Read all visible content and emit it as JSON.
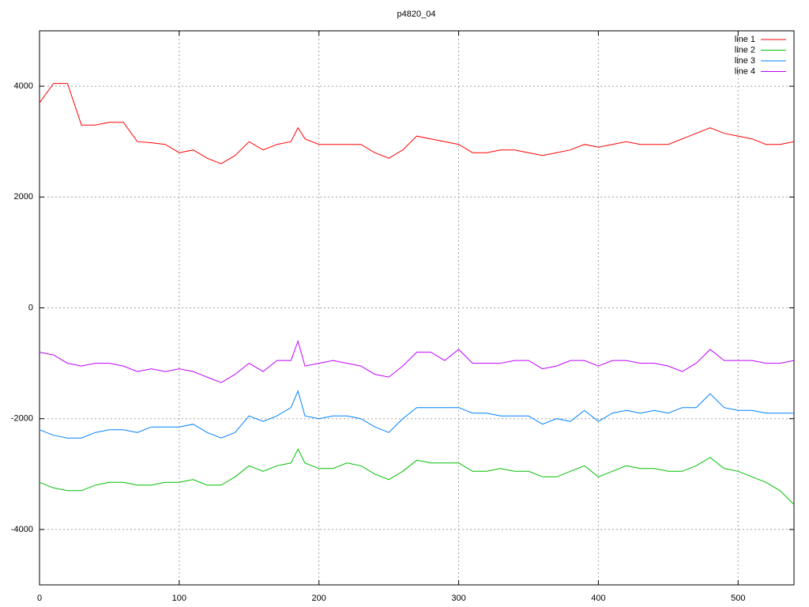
{
  "chart_data": {
    "type": "line",
    "title": "p4820_04",
    "x": [
      0,
      10,
      20,
      30,
      40,
      50,
      60,
      70,
      80,
      90,
      100,
      110,
      120,
      130,
      140,
      150,
      160,
      170,
      180,
      185,
      190,
      200,
      210,
      220,
      230,
      240,
      250,
      260,
      270,
      280,
      290,
      300,
      310,
      320,
      330,
      340,
      350,
      360,
      370,
      380,
      390,
      400,
      410,
      420,
      430,
      440,
      450,
      460,
      470,
      480,
      490,
      500,
      510,
      520,
      530,
      540
    ],
    "series": [
      {
        "name": "line 1",
        "color": "#ff0000",
        "values": [
          3700,
          4050,
          4050,
          3300,
          3300,
          3350,
          3350,
          3000,
          2980,
          2950,
          2800,
          2850,
          2700,
          2600,
          2750,
          3000,
          2850,
          2950,
          3000,
          3250,
          3050,
          2950,
          2950,
          2950,
          2950,
          2800,
          2700,
          2850,
          3100,
          3050,
          3000,
          2950,
          2800,
          2800,
          2850,
          2850,
          2800,
          2750,
          2800,
          2850,
          2950,
          2900,
          2950,
          3000,
          2950,
          2950,
          2950,
          3050,
          3150,
          3250,
          3150,
          3100,
          3050,
          2950,
          2950,
          3000
        ]
      },
      {
        "name": "line 2",
        "color": "#00c000",
        "values": [
          -3150,
          -3250,
          -3300,
          -3300,
          -3200,
          -3150,
          -3150,
          -3200,
          -3200,
          -3150,
          -3150,
          -3100,
          -3200,
          -3200,
          -3050,
          -2850,
          -2950,
          -2850,
          -2800,
          -2550,
          -2800,
          -2900,
          -2900,
          -2800,
          -2850,
          -3000,
          -3100,
          -2950,
          -2750,
          -2800,
          -2800,
          -2800,
          -2950,
          -2950,
          -2900,
          -2950,
          -2950,
          -3050,
          -3050,
          -2950,
          -2850,
          -3050,
          -2950,
          -2850,
          -2900,
          -2900,
          -2950,
          -2950,
          -2850,
          -2700,
          -2900,
          -2950,
          -3050,
          -3150,
          -3300,
          -3550
        ]
      },
      {
        "name": "line 3",
        "color": "#0080ff",
        "values": [
          -2200,
          -2300,
          -2350,
          -2350,
          -2250,
          -2200,
          -2200,
          -2250,
          -2150,
          -2150,
          -2150,
          -2100,
          -2250,
          -2350,
          -2250,
          -1950,
          -2050,
          -1950,
          -1800,
          -1500,
          -1950,
          -2000,
          -1950,
          -1950,
          -2000,
          -2150,
          -2250,
          -2000,
          -1800,
          -1800,
          -1800,
          -1800,
          -1900,
          -1900,
          -1950,
          -1950,
          -1950,
          -2100,
          -2000,
          -2050,
          -1850,
          -2050,
          -1900,
          -1850,
          -1900,
          -1850,
          -1900,
          -1800,
          -1800,
          -1550,
          -1800,
          -1850,
          -1850,
          -1900,
          -1900,
          -1900
        ]
      },
      {
        "name": "line 4",
        "color": "#c000ff",
        "values": [
          -800,
          -850,
          -1000,
          -1050,
          -1000,
          -1000,
          -1050,
          -1150,
          -1100,
          -1150,
          -1100,
          -1150,
          -1250,
          -1350,
          -1200,
          -1000,
          -1150,
          -950,
          -950,
          -600,
          -1050,
          -1000,
          -950,
          -1000,
          -1050,
          -1200,
          -1250,
          -1050,
          -800,
          -800,
          -950,
          -750,
          -1000,
          -1000,
          -1000,
          -950,
          -950,
          -1100,
          -1050,
          -950,
          -950,
          -1050,
          -950,
          -950,
          -1000,
          -1000,
          -1050,
          -1150,
          -1000,
          -750,
          -950,
          -950,
          -950,
          -1000,
          -1000,
          -950
        ]
      }
    ],
    "xlim": [
      0,
      540
    ],
    "ylim": [
      -5000,
      5000
    ],
    "xticks": [
      0,
      100,
      200,
      300,
      400,
      500
    ],
    "yticks": [
      -4000,
      -2000,
      0,
      2000,
      4000
    ],
    "grid": true,
    "legend": "top-right"
  }
}
